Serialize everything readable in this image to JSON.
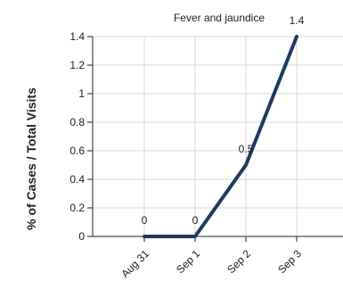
{
  "chart_data": {
    "type": "line",
    "title": "Fever and jaundice",
    "xlabel": "",
    "ylabel": "% of Cases / Total Visits",
    "categories": [
      "Aug 31",
      "Sep 1",
      "Sep 2",
      "Sep 3"
    ],
    "series": [
      {
        "values": [
          0,
          0,
          0.5,
          1.4
        ],
        "color": "#1f3a5f"
      }
    ],
    "data_labels": [
      "0",
      "0",
      "0.5",
      "1.4"
    ],
    "y_ticks": [
      "0",
      "0.2",
      "0.4",
      "0.6",
      "0.8",
      "1",
      "1.2",
      "1.4"
    ],
    "ylim": [
      0,
      1.4
    ],
    "grid": true,
    "legend": "none"
  }
}
